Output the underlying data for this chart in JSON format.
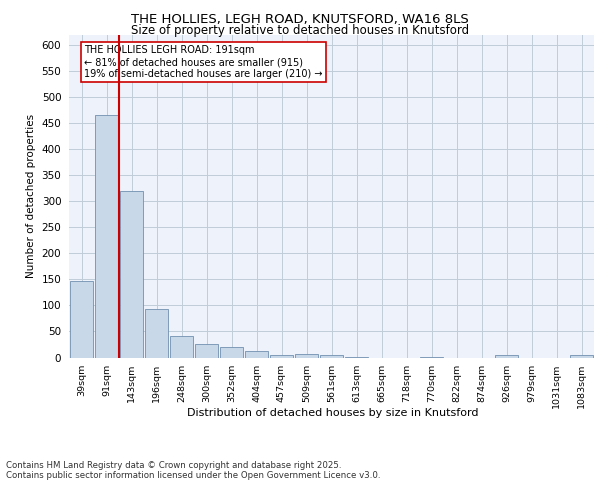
{
  "title_line1": "THE HOLLIES, LEGH ROAD, KNUTSFORD, WA16 8LS",
  "title_line2": "Size of property relative to detached houses in Knutsford",
  "xlabel": "Distribution of detached houses by size in Knutsford",
  "ylabel": "Number of detached properties",
  "categories": [
    "39sqm",
    "91sqm",
    "143sqm",
    "196sqm",
    "248sqm",
    "300sqm",
    "352sqm",
    "404sqm",
    "457sqm",
    "509sqm",
    "561sqm",
    "613sqm",
    "665sqm",
    "718sqm",
    "770sqm",
    "822sqm",
    "874sqm",
    "926sqm",
    "979sqm",
    "1031sqm",
    "1083sqm"
  ],
  "values": [
    148,
    466,
    320,
    93,
    41,
    25,
    21,
    12,
    5,
    7,
    5,
    1,
    0,
    0,
    1,
    0,
    0,
    4,
    0,
    0,
    5
  ],
  "bar_color": "#c8d8e8",
  "bar_edge_color": "#7090b0",
  "grid_color": "#c0ccd8",
  "background_color": "#eef2fa",
  "vline_color": "#cc0000",
  "vline_x_index": 1.5,
  "annotation_text": "THE HOLLIES LEGH ROAD: 191sqm\n← 81% of detached houses are smaller (915)\n19% of semi-detached houses are larger (210) →",
  "annotation_box_color": "#cc0000",
  "ylim": [
    0,
    620
  ],
  "yticks": [
    0,
    50,
    100,
    150,
    200,
    250,
    300,
    350,
    400,
    450,
    500,
    550,
    600
  ],
  "footer_line1": "Contains HM Land Registry data © Crown copyright and database right 2025.",
  "footer_line2": "Contains public sector information licensed under the Open Government Licence v3.0."
}
